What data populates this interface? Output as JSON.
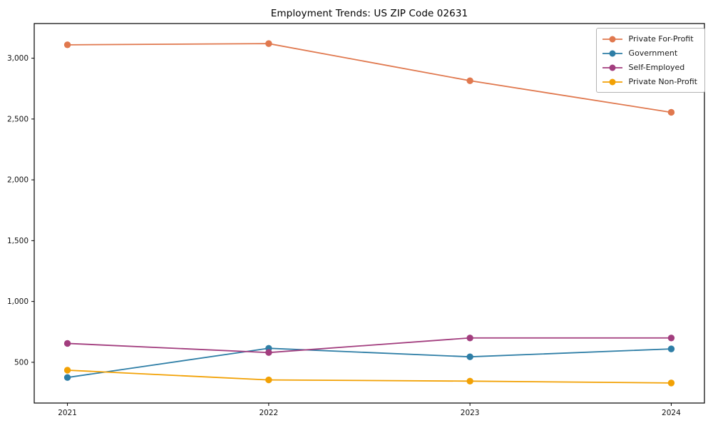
{
  "chart_data": {
    "type": "line",
    "title": "Employment Trends: US ZIP Code 02631",
    "xlabel": "",
    "ylabel": "",
    "x": [
      2021,
      2022,
      2023,
      2024
    ],
    "x_tick_labels": [
      "2021",
      "2022",
      "2023",
      "2024"
    ],
    "series": [
      {
        "name": "Private For-Profit",
        "color": "#e0784e",
        "values": [
          3110,
          3120,
          2815,
          2555
        ]
      },
      {
        "name": "Government",
        "color": "#2e7ea6",
        "values": [
          375,
          615,
          545,
          610
        ]
      },
      {
        "name": "Self-Employed",
        "color": "#a23d7e",
        "values": [
          655,
          580,
          700,
          700
        ]
      },
      {
        "name": "Private Non-Profit",
        "color": "#f2a104",
        "values": [
          435,
          355,
          345,
          330
        ]
      }
    ],
    "yticks": [
      {
        "value": 500,
        "label": "500"
      },
      {
        "value": 1000,
        "label": "1,000"
      },
      {
        "value": 1500,
        "label": "1,500"
      },
      {
        "value": 2000,
        "label": "2,000"
      },
      {
        "value": 2500,
        "label": "2,500"
      },
      {
        "value": 3000,
        "label": "3,000"
      }
    ],
    "xlim": [
      2020.835,
      2024.165
    ],
    "ylim": [
      165,
      3285
    ],
    "grid": false,
    "legend_position": "upper right",
    "frame_color": "#000000"
  }
}
